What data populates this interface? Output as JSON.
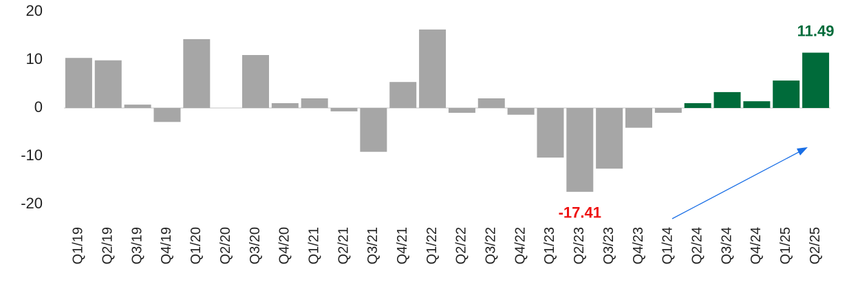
{
  "chart_data": {
    "type": "bar",
    "categories": [
      "Q1/19",
      "Q2/19",
      "Q3/19",
      "Q4/19",
      "Q1/20",
      "Q2/20",
      "Q3/20",
      "Q4/20",
      "Q1/21",
      "Q2/21",
      "Q3/21",
      "Q4/21",
      "Q1/22",
      "Q2/22",
      "Q3/22",
      "Q4/22",
      "Q1/23",
      "Q2/23",
      "Q3/23",
      "Q4/23",
      "Q1/24",
      "Q2/24",
      "Q3/24",
      "Q4/24",
      "Q1/25",
      "Q2/25"
    ],
    "values": [
      10.4,
      9.9,
      0.7,
      -2.9,
      14.3,
      0,
      11.0,
      1.0,
      2.0,
      -0.7,
      -9.1,
      5.4,
      16.3,
      -1.0,
      2.0,
      -1.4,
      -10.3,
      -17.41,
      -12.6,
      -4.1,
      -1.0,
      1.0,
      3.3,
      1.4,
      5.7,
      11.49
    ],
    "colors": [
      "#a6a6a6",
      "#a6a6a6",
      "#a6a6a6",
      "#a6a6a6",
      "#a6a6a6",
      "#a6a6a6",
      "#a6a6a6",
      "#a6a6a6",
      "#a6a6a6",
      "#a6a6a6",
      "#a6a6a6",
      "#a6a6a6",
      "#a6a6a6",
      "#a6a6a6",
      "#a6a6a6",
      "#a6a6a6",
      "#a6a6a6",
      "#a6a6a6",
      "#a6a6a6",
      "#a6a6a6",
      "#a6a6a6",
      "#006b3a",
      "#006b3a",
      "#006b3a",
      "#006b3a",
      "#006b3a"
    ],
    "value_labels": [
      null,
      null,
      null,
      null,
      null,
      null,
      null,
      null,
      null,
      null,
      null,
      null,
      null,
      null,
      null,
      null,
      null,
      "-17.41",
      null,
      null,
      null,
      null,
      null,
      null,
      null,
      "11.49"
    ],
    "value_label_colors": [
      null,
      null,
      null,
      null,
      null,
      null,
      null,
      null,
      null,
      null,
      null,
      null,
      null,
      null,
      null,
      null,
      null,
      "#ee1111",
      null,
      null,
      null,
      null,
      null,
      null,
      null,
      "#006b3a"
    ],
    "ylim": [
      -20,
      20
    ],
    "yticks": [
      -20,
      -10,
      0,
      10,
      20
    ],
    "grid": false
  }
}
